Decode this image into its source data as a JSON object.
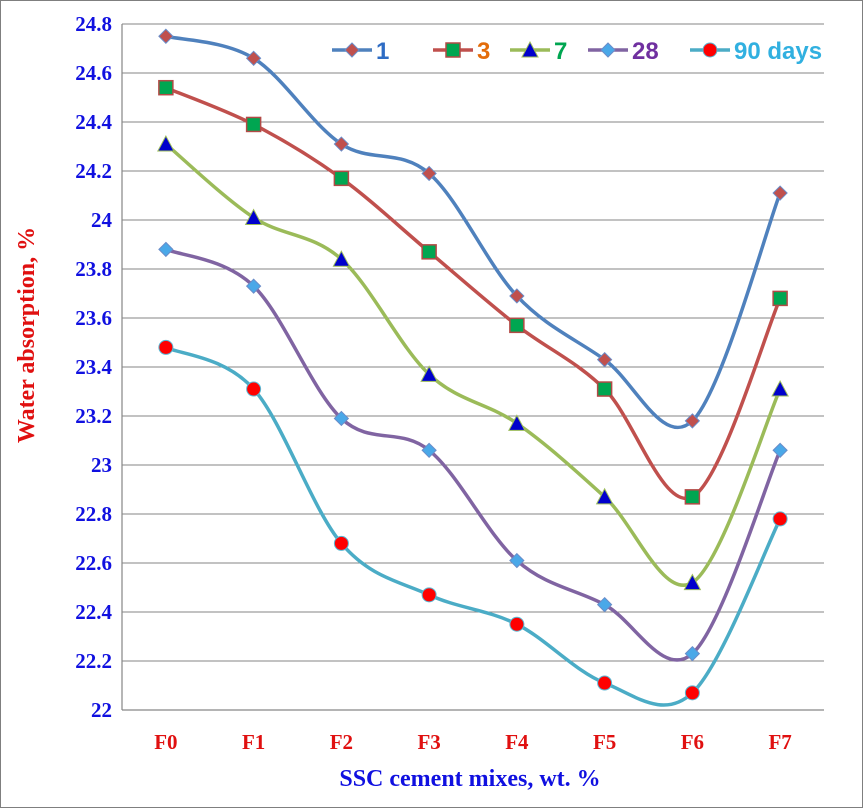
{
  "chart_data": {
    "type": "line",
    "title": "",
    "xlabel": "SSC cement mixes, wt. %",
    "ylabel": "Water absorption,  %",
    "categories": [
      "F0",
      "F1",
      "F2",
      "F3",
      "F4",
      "F5",
      "F6",
      "F7"
    ],
    "ylim": [
      22,
      24.8
    ],
    "yticks": [
      "22",
      "22.2",
      "22.4",
      "22.6",
      "22.8",
      "23",
      "23.2",
      "23.4",
      "23.6",
      "23.8",
      "24",
      "24.2",
      "24.4",
      "24.6",
      "24.8"
    ],
    "grid": true,
    "smooth": true,
    "legend_position": "top-right",
    "series": [
      {
        "name": "1",
        "values": [
          24.75,
          24.66,
          24.31,
          24.19,
          23.69,
          23.43,
          23.18,
          24.11
        ],
        "line_color": "#4f81bd",
        "marker": "diamond",
        "marker_color": "#c0504d",
        "label_color": "#2e6cc4"
      },
      {
        "name": "3",
        "values": [
          24.54,
          24.39,
          24.17,
          23.87,
          23.57,
          23.31,
          22.87,
          23.68
        ],
        "line_color": "#c0504d",
        "marker": "square",
        "marker_color": "#00a651",
        "label_color": "#e36c0a"
      },
      {
        "name": "7",
        "values": [
          24.31,
          24.01,
          23.84,
          23.37,
          23.17,
          22.87,
          22.52,
          23.31
        ],
        "line_color": "#9bbb59",
        "marker": "triangle",
        "marker_color": "#0000cc",
        "label_color": "#00a651"
      },
      {
        "name": "28",
        "values": [
          23.88,
          23.73,
          23.19,
          23.06,
          22.61,
          22.43,
          22.23,
          23.06
        ],
        "line_color": "#8064a2",
        "marker": "diamond",
        "marker_color": "#4aa8e8",
        "label_color": "#7030a0"
      },
      {
        "name": "90 days",
        "values": [
          23.48,
          23.31,
          22.68,
          22.47,
          22.35,
          22.11,
          22.07,
          22.78
        ],
        "line_color": "#4bacc6",
        "marker": "circle",
        "marker_color": "#ff0000",
        "label_color": "#31b0e0"
      }
    ]
  }
}
